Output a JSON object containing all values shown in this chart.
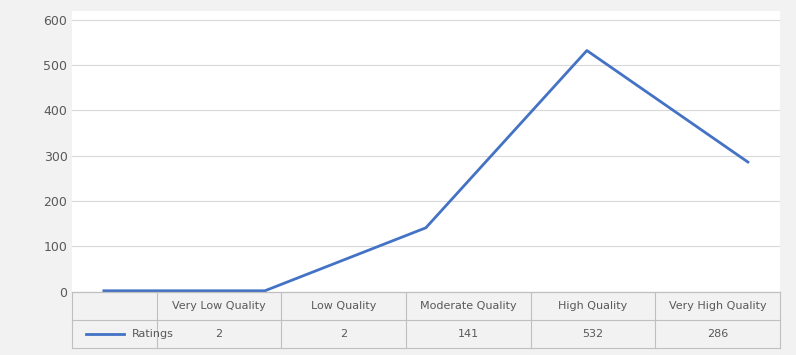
{
  "categories": [
    "Very Low Quality",
    "Low Quality",
    "Moderate Quality",
    "High Quality",
    "Very High Quality"
  ],
  "values": [
    2,
    2,
    141,
    532,
    286
  ],
  "line_color": "#4472c4",
  "line_width": 2.0,
  "legend_label": "Ratings",
  "ylim": [
    0,
    620
  ],
  "yticks": [
    0,
    100,
    200,
    300,
    400,
    500,
    600
  ],
  "background_color": "#f2f2f2",
  "plot_bg_color": "#ffffff",
  "grid_color": "#d9d9d9",
  "border_color": "#bfbfbf",
  "tick_label_color": "#595959",
  "table_border_color": "#bfbfbf",
  "figsize": [
    7.96,
    3.55
  ],
  "dpi": 100
}
